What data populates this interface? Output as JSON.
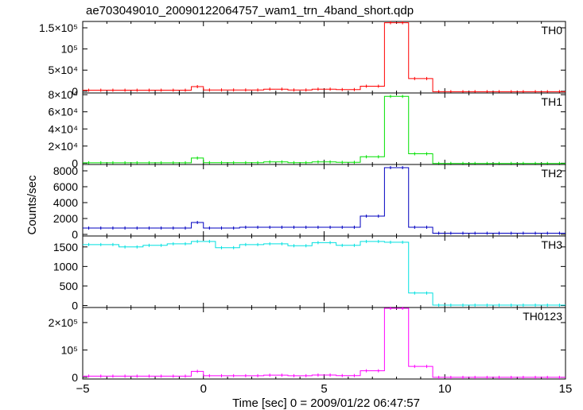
{
  "chart_data": {
    "type": "line",
    "title": "ae703049010_20090122064757_wam1_trn_4band_short.qdp",
    "xlabel": "Time [sec] 0 = 2009/01/22 06:47:57",
    "ylabel": "Counts/sec",
    "xlim": [
      -5,
      15
    ],
    "x_ticks": [
      "−5",
      "0",
      "5",
      "10",
      "15"
    ],
    "x_tick_values": [
      -5,
      0,
      5,
      10,
      15
    ],
    "bins": {
      "edges": [
        -5,
        -4.5,
        -4,
        -3.5,
        -3,
        -2.5,
        -2,
        -1.5,
        -1,
        -0.5,
        0,
        0.5,
        1,
        1.5,
        2,
        2.5,
        3,
        3.5,
        4,
        4.5,
        5,
        5.5,
        6,
        6.5,
        7,
        7.5,
        8,
        8.5,
        9,
        9.5,
        10,
        10.5,
        11,
        11.5,
        12,
        12.5,
        13,
        13.5,
        14,
        14.5,
        15
      ]
    },
    "panels": [
      {
        "name": "TH0",
        "color": "#ff0000",
        "ylim": [
          -4000,
          165000
        ],
        "ticks": [
          {
            "value": 0,
            "label": "0"
          },
          {
            "value": 50000,
            "label": "5×10⁴"
          },
          {
            "value": 100000,
            "label": "10⁵"
          },
          {
            "value": 150000,
            "label": "1.5×10⁵"
          }
        ],
        "values": [
          2500,
          2500,
          2500,
          2500,
          2500,
          2500,
          2500,
          2500,
          2500,
          11000,
          3000,
          3000,
          3000,
          3000,
          3000,
          5000,
          5000,
          3000,
          3000,
          5000,
          5000,
          4000,
          4000,
          12000,
          12000,
          162000,
          162000,
          30000,
          30000,
          -1000,
          -1000,
          -1000,
          -1000,
          -1000,
          -1000,
          -1000,
          -1000,
          -1000,
          -1000,
          -1000
        ]
      },
      {
        "name": "TH1",
        "color": "#00e000",
        "ylim": [
          -1500,
          82000
        ],
        "ticks": [
          {
            "value": 0,
            "label": "0"
          },
          {
            "value": 20000,
            "label": "2×10⁴"
          },
          {
            "value": 40000,
            "label": "4×10⁴"
          },
          {
            "value": 60000,
            "label": "6×10⁴"
          },
          {
            "value": 80000,
            "label": "8×10⁴"
          }
        ],
        "values": [
          500,
          500,
          500,
          500,
          500,
          500,
          500,
          500,
          500,
          6000,
          600,
          600,
          600,
          600,
          600,
          1500,
          1500,
          600,
          600,
          1500,
          1500,
          1000,
          1000,
          7500,
          7500,
          78000,
          78000,
          11000,
          11000,
          -300,
          -300,
          -300,
          -300,
          -300,
          -300,
          -300,
          -300,
          -300,
          -300,
          -300
        ]
      },
      {
        "name": "TH2",
        "color": "#0000c0",
        "ylim": [
          -200,
          8800
        ],
        "ticks": [
          {
            "value": 0,
            "label": "0"
          },
          {
            "value": 2000,
            "label": "2000"
          },
          {
            "value": 4000,
            "label": "4000"
          },
          {
            "value": 6000,
            "label": "6000"
          },
          {
            "value": 8000,
            "label": "8000"
          }
        ],
        "values": [
          800,
          800,
          800,
          800,
          800,
          800,
          800,
          800,
          800,
          1500,
          800,
          800,
          800,
          900,
          900,
          900,
          900,
          900,
          900,
          900,
          900,
          900,
          900,
          2300,
          2300,
          8400,
          8400,
          900,
          900,
          150,
          150,
          150,
          150,
          150,
          150,
          150,
          150,
          150,
          150,
          150
        ]
      },
      {
        "name": "TH3",
        "color": "#00e0e0",
        "ylim": [
          -50,
          1780
        ],
        "ticks": [
          {
            "value": 0,
            "label": "0"
          },
          {
            "value": 500,
            "label": "500"
          },
          {
            "value": 1000,
            "label": "1000"
          },
          {
            "value": 1500,
            "label": "1500"
          }
        ],
        "values": [
          1560,
          1560,
          1560,
          1500,
          1500,
          1540,
          1540,
          1580,
          1580,
          1640,
          1640,
          1480,
          1480,
          1560,
          1560,
          1580,
          1580,
          1530,
          1530,
          1610,
          1610,
          1540,
          1540,
          1640,
          1640,
          1620,
          1620,
          320,
          320,
          10,
          10,
          10,
          10,
          10,
          10,
          10,
          10,
          10,
          10,
          10
        ]
      },
      {
        "name": "TH0123",
        "color": "#ff00ff",
        "ylim": [
          -6000,
          255000
        ],
        "ticks": [
          {
            "value": 0,
            "label": "0"
          },
          {
            "value": 100000,
            "label": "10⁵"
          },
          {
            "value": 200000,
            "label": "2×10⁵"
          }
        ],
        "values": [
          4500,
          4500,
          4500,
          4500,
          4500,
          4500,
          4500,
          4500,
          4500,
          22000,
          6000,
          6000,
          6000,
          6000,
          6000,
          8000,
          8000,
          6000,
          6000,
          8500,
          8500,
          6500,
          6500,
          24000,
          24000,
          252000,
          252000,
          40000,
          40000,
          0,
          0,
          0,
          0,
          0,
          0,
          0,
          0,
          0,
          0,
          0
        ]
      }
    ]
  }
}
